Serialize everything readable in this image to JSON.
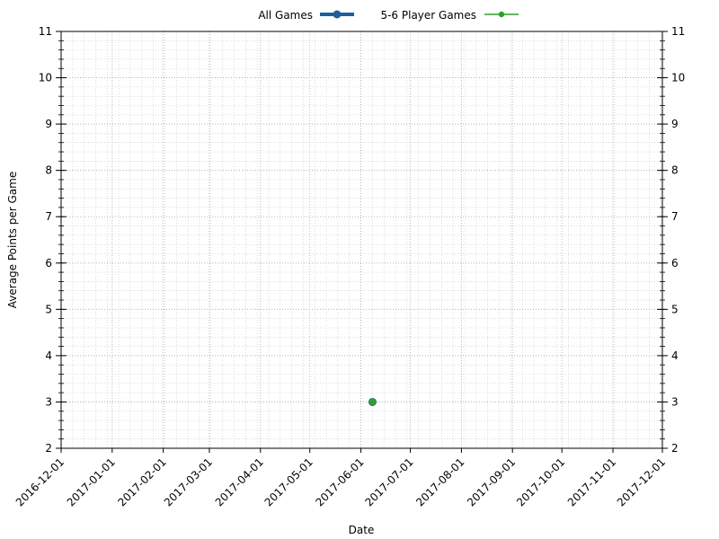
{
  "chart_data": {
    "type": "line",
    "xlabel": "Date",
    "ylabel": "Average Points per Game",
    "xlim": [
      "2016-12-01",
      "2017-12-01"
    ],
    "ylim": [
      2,
      11
    ],
    "x_ticks": [
      "2016-12-01",
      "2017-01-01",
      "2017-02-01",
      "2017-03-01",
      "2017-04-01",
      "2017-05-01",
      "2017-06-01",
      "2017-07-01",
      "2017-08-01",
      "2017-09-01",
      "2017-10-01",
      "2017-11-01",
      "2017-12-01"
    ],
    "y_ticks": [
      2,
      3,
      4,
      5,
      6,
      7,
      8,
      9,
      10,
      11
    ],
    "y_minor_step": 0.2,
    "grid": "dotted major and minor",
    "legend_position": "top-center",
    "series": [
      {
        "name": "All Games",
        "color": "#1f5f99",
        "x": [
          "2017-06-08"
        ],
        "y": [
          3
        ]
      },
      {
        "name": "5-6 Player Games",
        "color": "#2ca02c",
        "x": [
          "2017-06-08"
        ],
        "y": [
          3
        ]
      }
    ]
  }
}
